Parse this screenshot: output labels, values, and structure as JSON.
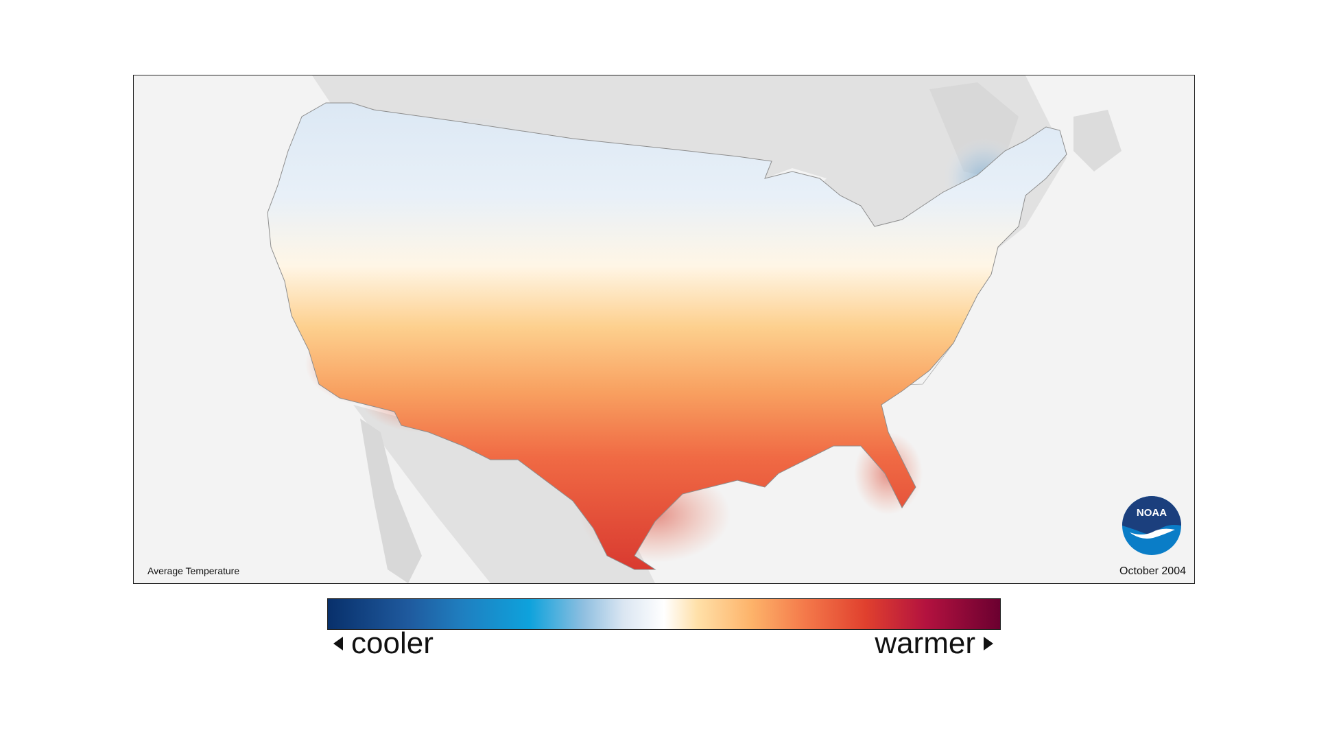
{
  "map": {
    "title": "Average Temperature",
    "date": "October 2004",
    "logo_text": "NOAA"
  },
  "legend": {
    "low_label": "cooler",
    "high_label": "warmer",
    "colors": [
      "#08306b",
      "#1f7fc0",
      "#0ea2dc",
      "#dbe6f2",
      "#ffffff",
      "#ffe0a8",
      "#fdb36a",
      "#f4794a",
      "#e0402e",
      "#b3123f",
      "#6b0030"
    ]
  }
}
